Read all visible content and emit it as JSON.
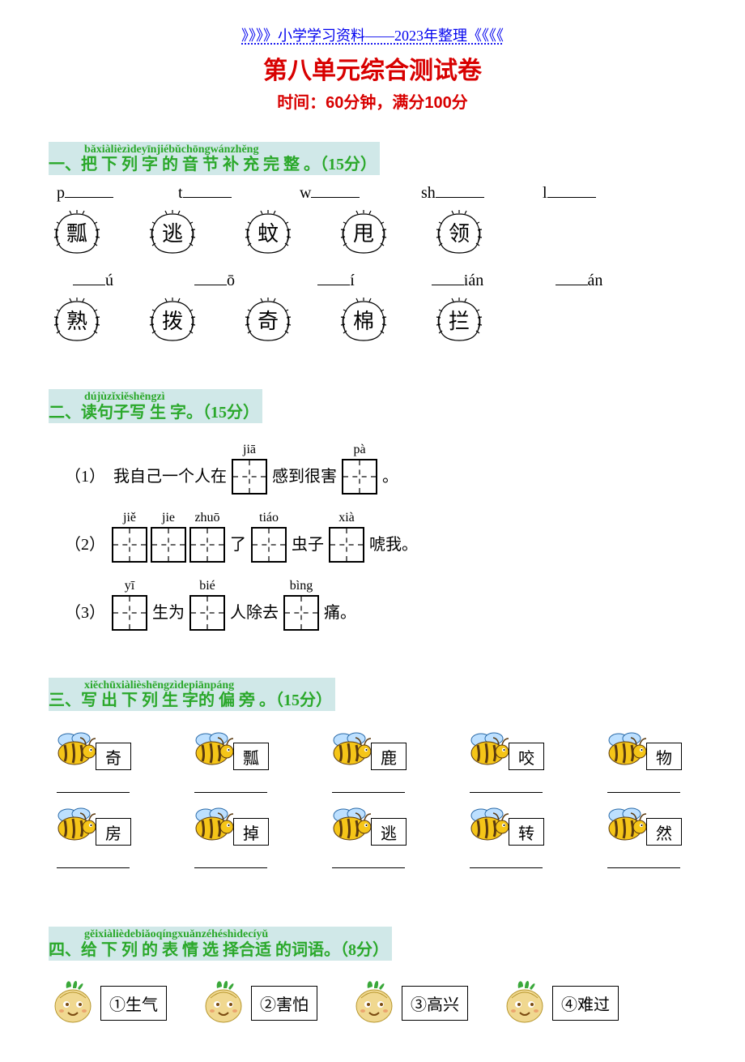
{
  "colors": {
    "banner": "#0000ee",
    "title": "#d80000",
    "heading_bg": "#d0e8e8",
    "heading_text": "#2aa82a",
    "bee_body": "#f5c518",
    "bee_stripe": "#5a3a10",
    "bee_wing": "#bde0ff",
    "onion_body": "#f0d890",
    "onion_leaf": "#3aa83a",
    "onion_face": "#7a4a10"
  },
  "banner": "》》》》小学学习资料——2023年整理《《《《",
  "title": "第八单元综合测试卷",
  "subtitle": "时间：60分钟，满分100分",
  "q1": {
    "pinyin": "bǎxiàlièzìdeyīnjiébǔchōngwánzhěng",
    "hanzi": "一、把 下 列 字 的 音 节 补  充   完   整 。",
    "points": "（15分）",
    "row1_pre": [
      "p",
      "t",
      "w",
      "sh",
      "l"
    ],
    "row1_chars": [
      "瓢",
      "逃",
      "蚊",
      "甩",
      "领"
    ],
    "row2_suf": [
      "ú",
      "ō",
      "í",
      "ián",
      "án"
    ],
    "row2_chars": [
      "熟",
      "拨",
      "奇",
      "棉",
      "拦"
    ]
  },
  "q2": {
    "pinyin": "dújùzǐxiěshēngzì",
    "hanzi": "二、读句子写   生  字。",
    "points": "（15分）",
    "lines": [
      {
        "num": "（1）",
        "parts": [
          {
            "t": "我自己一个人在"
          },
          {
            "box": true,
            "py": "jiā"
          },
          {
            "t": "感到很害"
          },
          {
            "box": true,
            "py": "pà"
          },
          {
            "t": "。"
          }
        ]
      },
      {
        "num": "（2）",
        "parts": [
          {
            "box": true,
            "py": "jiě"
          },
          {
            "box": true,
            "py": "jie"
          },
          {
            "box": true,
            "py": "zhuō"
          },
          {
            "t": "了"
          },
          {
            "box": true,
            "py": "tiáo"
          },
          {
            "t": "虫子"
          },
          {
            "box": true,
            "py": "xià"
          },
          {
            "t": "唬我。"
          }
        ]
      },
      {
        "num": "（3）",
        "parts": [
          {
            "box": true,
            "py": "yī"
          },
          {
            "t": "生为"
          },
          {
            "box": true,
            "py": "bié"
          },
          {
            "t": "人除去"
          },
          {
            "box": true,
            "py": "bìng"
          },
          {
            "t": "痛。"
          }
        ]
      }
    ]
  },
  "q3": {
    "pinyin": "xiěchūxiàlièshēngzìdepiānpáng",
    "hanzi": "三、写 出  下 列   生  字的 偏   旁 。",
    "points": "（15分）",
    "row1": [
      "奇",
      "瓢",
      "鹿",
      "咬",
      "物"
    ],
    "row2": [
      "房",
      "掉",
      "逃",
      "转",
      "然"
    ]
  },
  "q4": {
    "pinyin": "gěixiàlièdebiǎoqíngxuǎnzéhéshìdecíyǔ",
    "hanzi": "四、给 下 列 的 表   情   选  择合适 的词语。",
    "points": "（8分）",
    "words": [
      "①生气",
      "②害怕",
      "③高兴",
      "④难过"
    ]
  }
}
